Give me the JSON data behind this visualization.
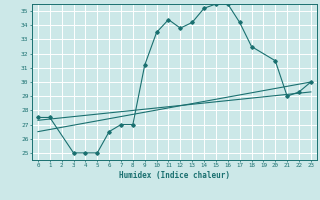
{
  "title": "",
  "xlabel": "Humidex (Indice chaleur)",
  "bg_color": "#cce8e8",
  "grid_color": "#ffffff",
  "line_color": "#1a7070",
  "xlim": [
    -0.5,
    23.5
  ],
  "ylim": [
    24.5,
    35.5
  ],
  "xticks": [
    0,
    1,
    2,
    3,
    4,
    5,
    6,
    7,
    8,
    9,
    10,
    11,
    12,
    13,
    14,
    15,
    16,
    17,
    18,
    19,
    20,
    21,
    22,
    23
  ],
  "yticks": [
    25,
    26,
    27,
    28,
    29,
    30,
    31,
    32,
    33,
    34,
    35
  ],
  "line1_x": [
    0,
    1,
    3,
    4,
    5,
    6,
    7,
    8,
    9,
    10,
    11,
    12,
    13,
    14,
    15,
    16,
    17,
    18,
    20,
    21,
    22,
    23
  ],
  "line1_y": [
    27.5,
    27.5,
    25.0,
    25.0,
    25.0,
    26.5,
    27.0,
    27.0,
    31.2,
    33.5,
    34.4,
    33.8,
    34.2,
    35.2,
    35.5,
    35.5,
    34.2,
    32.5,
    31.5,
    29.0,
    29.3,
    30.0
  ],
  "line2_x": [
    0,
    23
  ],
  "line2_y": [
    26.5,
    30.0
  ],
  "line3_x": [
    0,
    23
  ],
  "line3_y": [
    27.3,
    29.3
  ]
}
